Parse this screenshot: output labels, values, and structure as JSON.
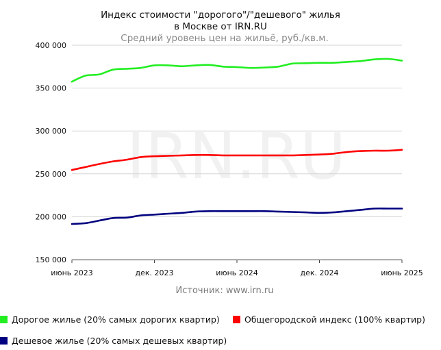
{
  "chart_data": {
    "type": "line",
    "title_line1": "Индекс стоимости \"дорогого\"/\"дешевого\" жилья",
    "title_line2": "в Москве от IRN.RU",
    "subtitle": "Средний уровень цен на жильё, руб./кв.м.",
    "watermark": "IRN.RU",
    "source": "Источник: www.irn.ru",
    "x": [
      "2023-06",
      "2023-07",
      "2023-08",
      "2023-09",
      "2023-10",
      "2023-11",
      "2023-12",
      "2024-01",
      "2024-02",
      "2024-03",
      "2024-04",
      "2024-05",
      "2024-06",
      "2024-07",
      "2024-08",
      "2024-09",
      "2024-10",
      "2024-11",
      "2024-12",
      "2025-01",
      "2025-02",
      "2025-03",
      "2025-04",
      "2025-05",
      "2025-06"
    ],
    "x_tick_labels": [
      {
        "x": "2023-06",
        "label": "июнь 2023"
      },
      {
        "x": "2023-12",
        "label": "дек. 2023"
      },
      {
        "x": "2024-06",
        "label": "июнь 2024"
      },
      {
        "x": "2024-12",
        "label": "дек. 2024"
      },
      {
        "x": "2025-06",
        "label": "июнь 2025"
      }
    ],
    "y_ticks": [
      {
        "value": 150000,
        "label": "150 000"
      },
      {
        "value": 200000,
        "label": "200 000"
      },
      {
        "value": 250000,
        "label": "250 000"
      },
      {
        "value": 300000,
        "label": "300 000"
      },
      {
        "value": 350000,
        "label": "350 000"
      },
      {
        "value": 400000,
        "label": "400 000"
      }
    ],
    "ylim": [
      150000,
      400000
    ],
    "grid": "horizontal",
    "legend_position": "bottom",
    "series": [
      {
        "name": "Дорогое жилье (20% самых дорогих квартир)",
        "color": "#22ee22",
        "values": [
          357500,
          364500,
          366000,
          371500,
          372500,
          373500,
          376500,
          376500,
          375500,
          376500,
          377000,
          375000,
          374500,
          373500,
          374000,
          375000,
          378500,
          379000,
          379500,
          379500,
          380500,
          381500,
          383500,
          384000,
          382000
        ]
      },
      {
        "name": "Общегородской индекс (100% квартир)",
        "color": "#ff0000",
        "values": [
          254500,
          258000,
          261500,
          264500,
          266500,
          269500,
          270500,
          271000,
          271500,
          272000,
          272000,
          271500,
          271500,
          271500,
          271500,
          271500,
          271500,
          272000,
          272500,
          273500,
          275500,
          276500,
          277000,
          277000,
          278000
        ]
      },
      {
        "name": "Дешевое жилье (20% самых дешевых квартир)",
        "color": "#000080",
        "values": [
          191500,
          192500,
          195500,
          198500,
          199000,
          201500,
          202500,
          203500,
          204500,
          206000,
          206500,
          206500,
          206500,
          206500,
          206500,
          206000,
          205500,
          205000,
          204500,
          205000,
          206500,
          208000,
          209500,
          209500,
          209500
        ]
      }
    ]
  }
}
